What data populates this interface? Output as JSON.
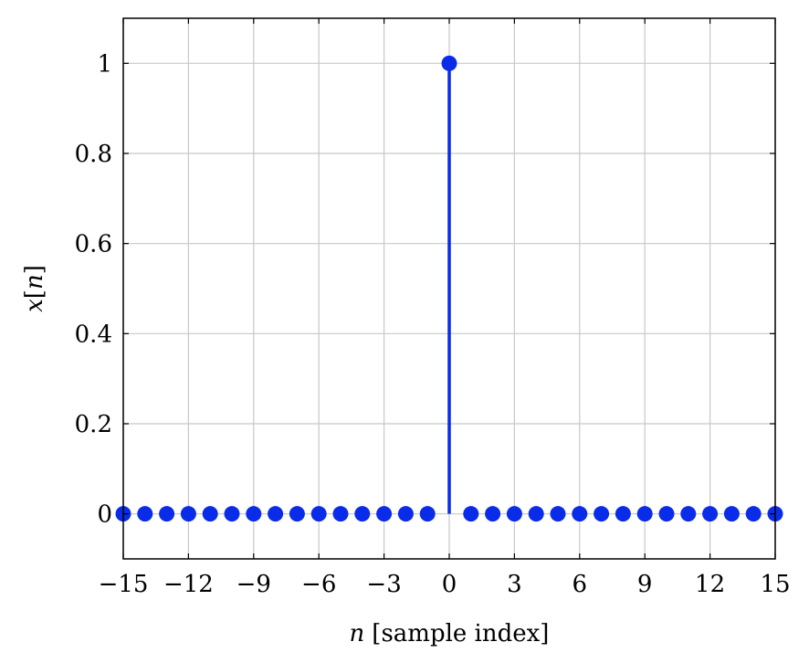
{
  "chart_data": {
    "type": "stem",
    "x": [
      -15,
      -14,
      -13,
      -12,
      -11,
      -10,
      -9,
      -8,
      -7,
      -6,
      -5,
      -4,
      -3,
      -2,
      -1,
      0,
      1,
      2,
      3,
      4,
      5,
      6,
      7,
      8,
      9,
      10,
      11,
      12,
      13,
      14,
      15
    ],
    "series": [
      {
        "values": [
          0,
          0,
          0,
          0,
          0,
          0,
          0,
          0,
          0,
          0,
          0,
          0,
          0,
          0,
          0,
          1,
          0,
          0,
          0,
          0,
          0,
          0,
          0,
          0,
          0,
          0,
          0,
          0,
          0,
          0,
          0
        ]
      }
    ],
    "xlim": [
      -15,
      15
    ],
    "ylim": [
      -0.1,
      1.1
    ],
    "xticks": [
      "−15",
      "−12",
      "−9",
      "−6",
      "−3",
      "0",
      "3",
      "6",
      "9",
      "12",
      "15"
    ],
    "yticks": [
      "0",
      "0.2",
      "0.4",
      "0.6",
      "0.8",
      "1"
    ],
    "xlabel": {
      "var": "n",
      "text": "[sample index]"
    },
    "ylabel": {
      "var": "x",
      "open": "[",
      "arg": "n",
      "close": "]"
    },
    "grid": true,
    "color": "#0a2ce8"
  }
}
